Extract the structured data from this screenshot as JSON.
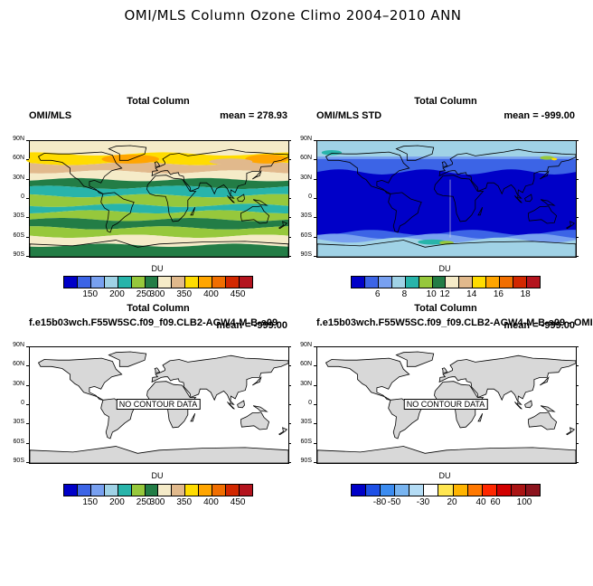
{
  "title": "OMI/MLS Column Ozone Climo 2004–2010 ANN",
  "lat_labels": [
    "90N",
    "60N",
    "30N",
    "0",
    "30S",
    "60S",
    "90S"
  ],
  "panels": [
    {
      "title": "Total Column",
      "left": "OMI/MLS",
      "right": "mean = 278.93",
      "unit": "DU",
      "nodata": "",
      "colorbar": "a",
      "tick_labels": [
        "150",
        "200",
        "250",
        "300",
        "350",
        "400",
        "450"
      ],
      "field": "ozone"
    },
    {
      "title": "Total Column",
      "left": "OMI/MLS STD",
      "right": "mean = -999.00",
      "unit": "DU",
      "nodata": "",
      "colorbar": "b",
      "tick_labels": [
        "6",
        "8",
        "10",
        "12",
        "14",
        "16",
        "18"
      ],
      "field": "std"
    },
    {
      "title": "Total Column",
      "left": "f.e15b03wch.F55W5SC.f09_f09.CLB2-AGW4-M-B-s09",
      "right": "mean = -999.00",
      "unit": "DU",
      "nodata": "NO CONTOUR DATA",
      "colorbar": "a",
      "tick_labels": [
        "150",
        "200",
        "250",
        "300",
        "350",
        "400",
        "450"
      ],
      "field": "none"
    },
    {
      "title": "Total Column",
      "left": "f.e15b03wch.F55W5SC.f09_f09.CLB2-AGW4-M-B-s09 - OMI",
      "right": "mean = -999.00",
      "unit": "DU",
      "nodata": "NO CONTOUR DATA",
      "colorbar": "c",
      "tick_labels": [
        "-80",
        "-50",
        "-30",
        "20",
        "40",
        "60",
        "100"
      ],
      "field": "none"
    }
  ],
  "colorbars": {
    "a": [
      "#0000c8",
      "#3c64e6",
      "#78a0f0",
      "#a0d2e6",
      "#28b4aa",
      "#96c83c",
      "#237d46",
      "#f5ebc8",
      "#e1b98c",
      "#ffdc00",
      "#ffa500",
      "#f06e00",
      "#d22800",
      "#b4141e"
    ],
    "b": [
      "#0000c8",
      "#3c64e6",
      "#78a0f0",
      "#a0d2e6",
      "#28b4aa",
      "#96c83c",
      "#237d46",
      "#f5ebc8",
      "#e1b98c",
      "#ffdc00",
      "#ffa500",
      "#f06e00",
      "#d22800",
      "#b4141e"
    ],
    "c": [
      "#0000c8",
      "#1e50e6",
      "#3c8cf0",
      "#78b4f0",
      "#b4dcf5",
      "#ffffff",
      "#ffe650",
      "#ffb400",
      "#ff7800",
      "#ff2800",
      "#d20000",
      "#aa1414",
      "#8c141e"
    ]
  },
  "ozone_colors": [
    "#f5ebc8",
    "#237d46",
    "#96c83c",
    "#28b4aa",
    "#ffdc00",
    "#e1b98c",
    "#ffa500"
  ],
  "std_colors": [
    "#0000c8",
    "#3c64e6",
    "#78a0f0",
    "#a0d2e6",
    "#28b4aa",
    "#96c83c",
    "#ffdc00"
  ],
  "land_color": "#d8d8d8"
}
